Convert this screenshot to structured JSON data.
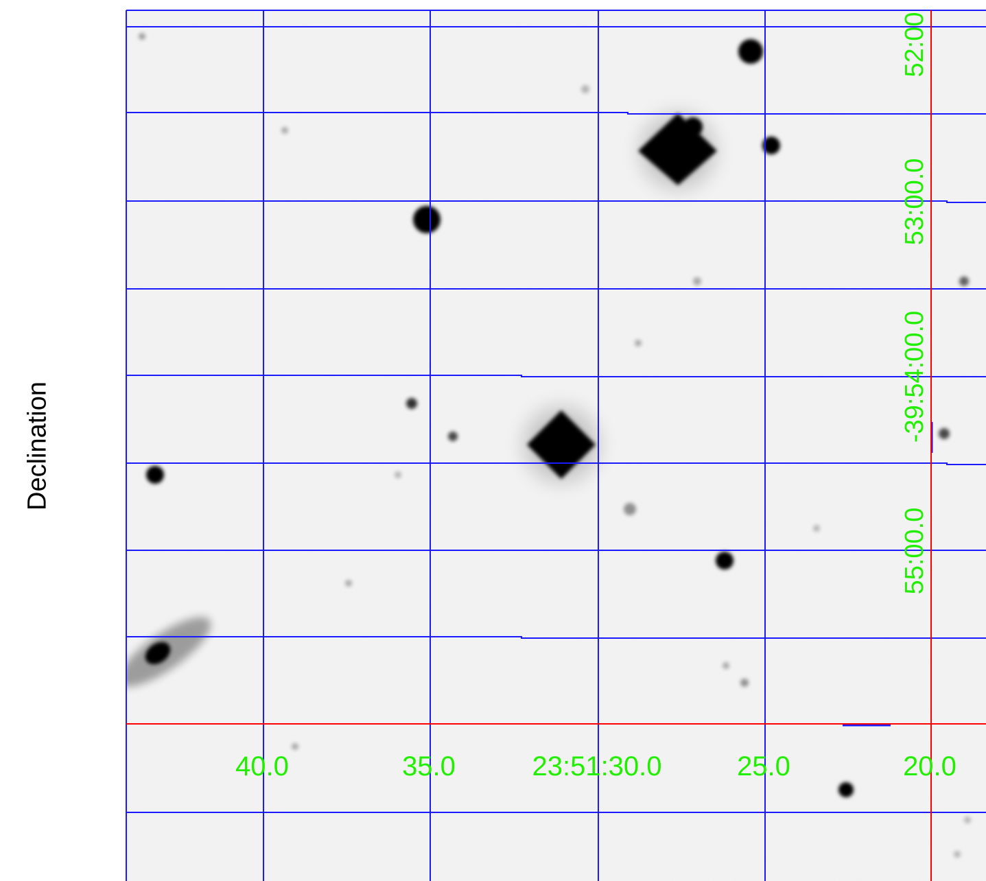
{
  "axis": {
    "ylabel": "Declination"
  },
  "ra_labels": [
    "40.0",
    "35.0",
    "23:51:30.0",
    "25.0",
    "20.0"
  ],
  "dec_labels": [
    "52:00",
    "53:00.0",
    "-39:54:00.0",
    "55:00.0"
  ],
  "colors": {
    "background": "#f4f4f4",
    "grid": "#1a1aff",
    "axis_cross": "#ff0000",
    "labels": "#22ee00",
    "stars": "#000000"
  }
}
